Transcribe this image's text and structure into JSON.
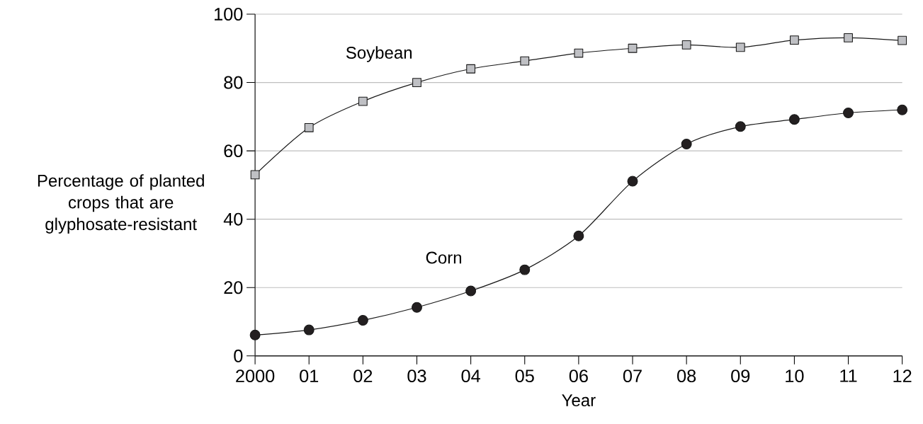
{
  "chart_data": {
    "type": "line",
    "xlabel": "Year",
    "ylabel": "Percentage of planted crops that are glyphosate-resistant",
    "categories": [
      "2000",
      "01",
      "02",
      "03",
      "04",
      "05",
      "06",
      "07",
      "08",
      "09",
      "10",
      "11",
      "12"
    ],
    "series": [
      {
        "name": "Soybean",
        "color": "#bfc0c4",
        "marker": "square",
        "values": [
          53.0,
          66.8,
          74.5,
          80.0,
          84.0,
          86.3,
          88.6,
          90.0,
          91.0,
          90.3,
          92.4,
          93.1,
          92.3
        ]
      },
      {
        "name": "Corn",
        "color": "#231f20",
        "marker": "circle",
        "values": [
          6.1,
          7.6,
          10.4,
          14.2,
          19.0,
          25.2,
          35.1,
          51.1,
          62.0,
          67.1,
          69.2,
          71.1,
          72.0
        ]
      }
    ],
    "ylim": [
      0,
      100
    ],
    "yticks": [
      0,
      20,
      40,
      60,
      80,
      100
    ],
    "grid": "y",
    "legend": false,
    "line_style": "solid"
  }
}
